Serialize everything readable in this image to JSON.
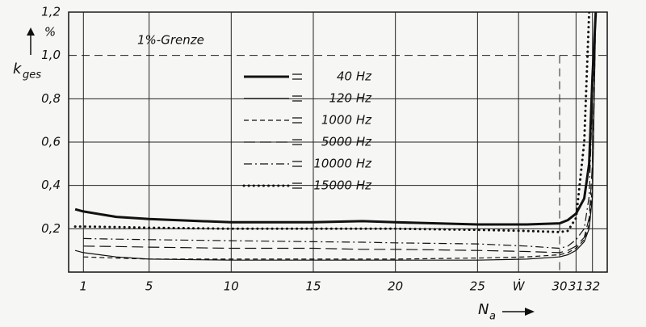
{
  "chart_data": {
    "type": "line",
    "y_unit": "%",
    "y_label_symbol": "k",
    "y_label_subscript": "ges",
    "x_label_symbol": "N",
    "x_label_subscript": "a",
    "annotation": "1%-Grenze",
    "xlim": [
      0.1,
      32.9
    ],
    "ylim": [
      0,
      1.2
    ],
    "xticks": [
      1,
      5,
      10,
      15,
      20,
      25,
      {
        "value": 27.5,
        "label": "Ẇ"
      },
      30,
      31,
      32
    ],
    "yticks": [
      {
        "value": 0.2,
        "label": "0,2"
      },
      {
        "value": 0.4,
        "label": "0,4"
      },
      {
        "value": 0.6,
        "label": "0,6"
      },
      {
        "value": 0.8,
        "label": "0,8"
      },
      {
        "value": 1.0,
        "label": "1,0"
      },
      {
        "value": 1.2,
        "label": "1,2"
      }
    ],
    "grid": true,
    "reference_lines": [
      {
        "axis": "y",
        "value": 1.0,
        "style": "dashed"
      },
      {
        "axis": "x",
        "value": 30,
        "style": "dashed"
      }
    ],
    "x": [
      0.5,
      1,
      3,
      5,
      10,
      15,
      18,
      20,
      25,
      28,
      30,
      30.5,
      31,
      31.5,
      31.8,
      32,
      32.2
    ],
    "series": [
      {
        "name": "40 Hz",
        "color": "#111111",
        "style": "thick",
        "values": [
          0.29,
          0.28,
          0.255,
          0.245,
          0.23,
          0.23,
          0.235,
          0.23,
          0.22,
          0.22,
          0.225,
          0.24,
          0.27,
          0.34,
          0.5,
          0.9,
          1.2
        ]
      },
      {
        "name": "120 Hz",
        "color": "#111111",
        "style": "solid",
        "values": [
          0.1,
          0.09,
          0.07,
          0.06,
          0.055,
          0.055,
          0.055,
          0.055,
          0.055,
          0.06,
          0.07,
          0.08,
          0.1,
          0.14,
          0.2,
          0.35,
          1.2
        ]
      },
      {
        "name": "1000 Hz",
        "color": "#111111",
        "style": "dashed",
        "values": [
          null,
          0.07,
          0.065,
          0.06,
          0.06,
          0.06,
          0.06,
          0.06,
          0.065,
          0.07,
          0.08,
          0.09,
          0.11,
          0.15,
          0.22,
          0.4,
          1.2
        ]
      },
      {
        "name": "5000 Hz",
        "color": "#111111",
        "style": "long-dashed",
        "values": [
          null,
          0.12,
          0.118,
          0.115,
          0.11,
          0.11,
          0.105,
          0.105,
          0.1,
          0.095,
          0.09,
          0.1,
          0.12,
          0.16,
          0.25,
          0.5,
          1.2
        ]
      },
      {
        "name": "10000 Hz",
        "color": "#111111",
        "style": "dash-dot",
        "values": [
          null,
          0.155,
          0.152,
          0.15,
          0.145,
          0.14,
          0.138,
          0.135,
          0.13,
          0.12,
          0.11,
          0.12,
          0.15,
          0.2,
          0.35,
          0.8,
          1.2
        ]
      },
      {
        "name": "15000 Hz",
        "color": "#111111",
        "style": "dotted",
        "values": [
          0.21,
          0.21,
          0.208,
          0.205,
          0.2,
          0.2,
          0.2,
          0.2,
          0.195,
          0.19,
          0.185,
          0.19,
          0.25,
          0.6,
          1.2,
          null,
          null
        ]
      }
    ]
  }
}
